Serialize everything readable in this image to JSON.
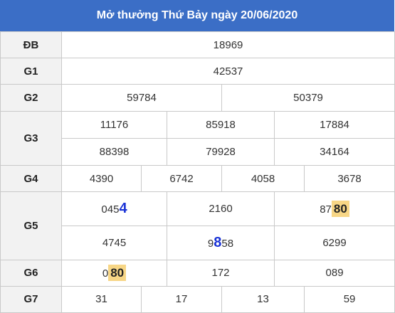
{
  "header": {
    "title": "Mở thưởng Thứ Bảy ngày 20/06/2020"
  },
  "labels": {
    "db": "ĐB",
    "g1": "G1",
    "g2": "G2",
    "g3": "G3",
    "g4": "G4",
    "g5": "G5",
    "g6": "G6",
    "g7": "G7"
  },
  "db": "18969",
  "g1": "42537",
  "g2": [
    "59784",
    "50379"
  ],
  "g3": [
    "11176",
    "85918",
    "17884",
    "88398",
    "79928",
    "34164"
  ],
  "g4": [
    "4390",
    "6742",
    "4058",
    "3678"
  ],
  "g5": {
    "a": {
      "pre": "045",
      "big": "4"
    },
    "b": "2160",
    "c": {
      "pre": "87",
      "hl": "80"
    },
    "d": "4745",
    "e": {
      "pre": "9",
      "big": "8",
      "post": "58"
    },
    "f": "6299"
  },
  "g6": {
    "a": {
      "pre": "0",
      "hl": "80"
    },
    "b": "172",
    "c": "089"
  },
  "g7": [
    "31",
    "17",
    "13",
    "59"
  ],
  "colors": {
    "header_bg": "#3b6ec6",
    "highlight_bg": "#f7d686",
    "big_digit": "#1a33d6",
    "label_bg": "#f2f2f2"
  }
}
